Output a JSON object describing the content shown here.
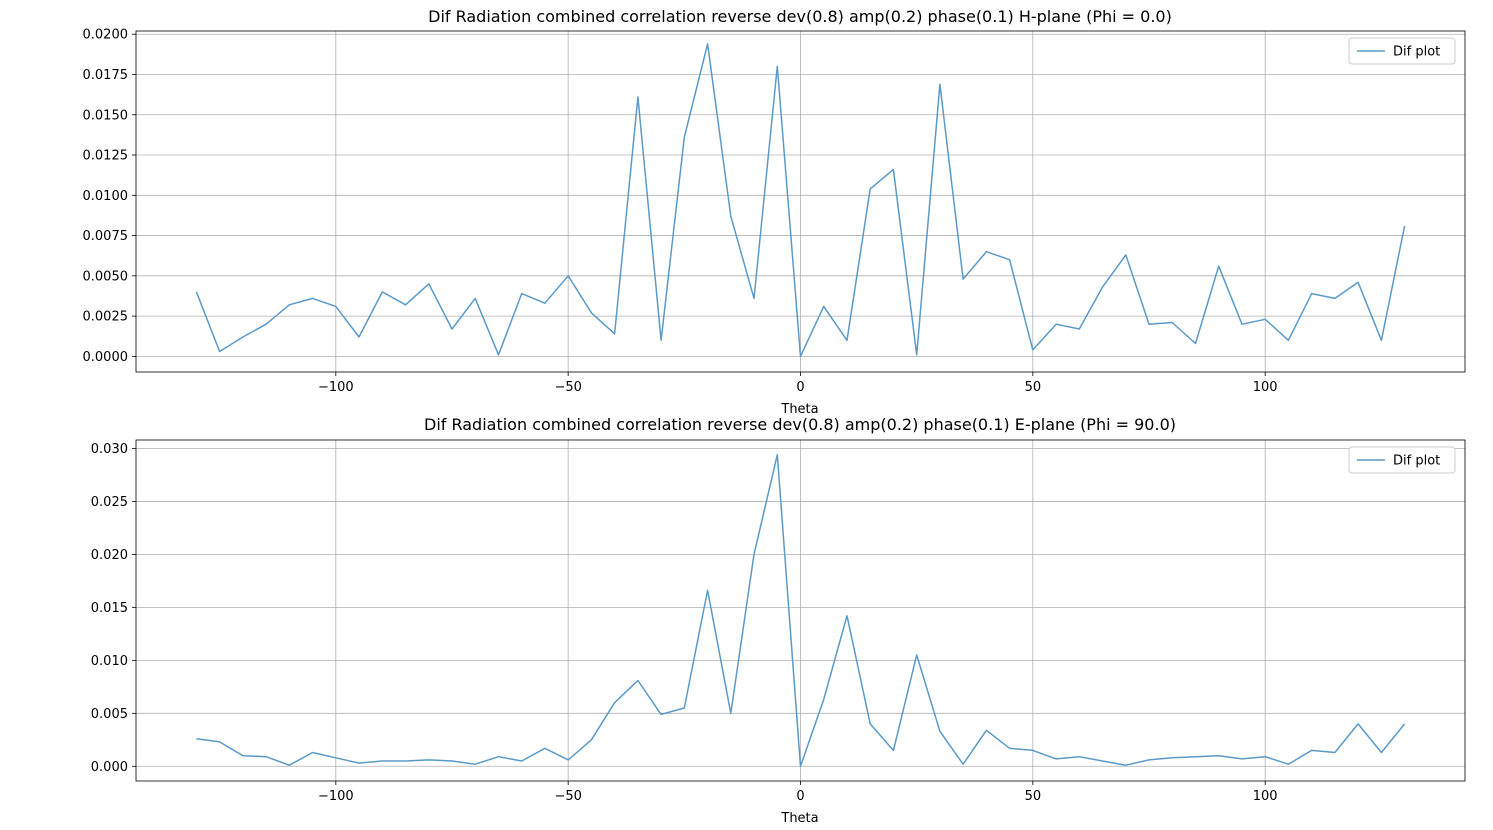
{
  "chart_data": [
    {
      "type": "line",
      "title": "Dif Radiation combined correlation reverse dev(0.8) amp(0.2) phase(0.1) H-plane (Phi = 0.0)",
      "xlabel": "Theta",
      "ylabel": "",
      "xlim": [
        -143,
        143
      ],
      "ylim": [
        -0.00097,
        0.0202
      ],
      "xticks": [
        -100,
        -50,
        0,
        50,
        100
      ],
      "xtick_labels": [
        "−100",
        "−50",
        "0",
        "50",
        "100"
      ],
      "yticks": [
        0.0,
        0.0025,
        0.005,
        0.0075,
        0.01,
        0.0125,
        0.015,
        0.0175,
        0.02
      ],
      "ytick_labels": [
        "0.0000",
        "0.0025",
        "0.0050",
        "0.0075",
        "0.0100",
        "0.0125",
        "0.0150",
        "0.0175",
        "0.0200"
      ],
      "grid": true,
      "legend": "top-right",
      "color": "#5b9ac8",
      "series": [
        {
          "name": "Dif plot",
          "x": [
            -130,
            -125,
            -120,
            -115,
            -110,
            -105,
            -100,
            -95,
            -90,
            -85,
            -80,
            -75,
            -70,
            -65,
            -60,
            -55,
            -50,
            -45,
            -40,
            -35,
            -30,
            -25,
            -20,
            -15,
            -10,
            -5,
            0,
            5,
            10,
            15,
            20,
            25,
            30,
            35,
            40,
            45,
            50,
            55,
            60,
            65,
            70,
            75,
            80,
            85,
            90,
            95,
            100,
            105,
            110,
            115,
            120,
            125,
            130
          ],
          "y": [
            0.004,
            0.0003,
            0.0012,
            0.002,
            0.0032,
            0.0036,
            0.0031,
            0.0012,
            0.004,
            0.0032,
            0.0045,
            0.0017,
            0.0036,
            0.0001,
            0.0039,
            0.0033,
            0.005,
            0.0027,
            0.0014,
            0.0161,
            0.001,
            0.0136,
            0.0194,
            0.0087,
            0.0036,
            0.018,
            0.0,
            0.0031,
            0.001,
            0.0104,
            0.0116,
            0.0001,
            0.0169,
            0.0048,
            0.0065,
            0.006,
            0.0004,
            0.002,
            0.0017,
            0.0043,
            0.0063,
            0.002,
            0.0021,
            0.0008,
            0.0056,
            0.002,
            0.0023,
            0.001,
            0.0039,
            0.0036,
            0.0046,
            0.001,
            0.0081
          ]
        }
      ]
    },
    {
      "type": "line",
      "title": "Dif Radiation combined correlation reverse dev(0.8) amp(0.2) phase(0.1) E-plane (Phi = 90.0)",
      "xlabel": "Theta",
      "ylabel": "",
      "xlim": [
        -143,
        143
      ],
      "ylim": [
        -0.00139,
        0.0308
      ],
      "xticks": [
        -100,
        -50,
        0,
        50,
        100
      ],
      "xtick_labels": [
        "−100",
        "−50",
        "0",
        "50",
        "100"
      ],
      "yticks": [
        0.0,
        0.005,
        0.01,
        0.015,
        0.02,
        0.025,
        0.03
      ],
      "ytick_labels": [
        "0.000",
        "0.005",
        "0.010",
        "0.015",
        "0.020",
        "0.025",
        "0.030"
      ],
      "grid": true,
      "legend": "top-right",
      "color": "#5b9ac8",
      "series": [
        {
          "name": "Dif plot",
          "x": [
            -130,
            -125,
            -120,
            -115,
            -110,
            -105,
            -100,
            -95,
            -90,
            -85,
            -80,
            -75,
            -70,
            -65,
            -60,
            -55,
            -50,
            -45,
            -40,
            -35,
            -30,
            -25,
            -20,
            -15,
            -10,
            -5,
            0,
            5,
            10,
            15,
            20,
            25,
            30,
            35,
            40,
            45,
            50,
            55,
            60,
            65,
            70,
            75,
            80,
            85,
            90,
            95,
            100,
            105,
            110,
            115,
            120,
            125,
            130
          ],
          "y": [
            0.0026,
            0.0023,
            0.001,
            0.0009,
            0.0001,
            0.0013,
            0.0008,
            0.0003,
            0.0005,
            0.0005,
            0.0006,
            0.0005,
            0.0002,
            0.0009,
            0.0005,
            0.0017,
            0.0006,
            0.0025,
            0.006,
            0.0081,
            0.0049,
            0.0055,
            0.0166,
            0.005,
            0.02,
            0.0294,
            0.0,
            0.0063,
            0.0142,
            0.004,
            0.0015,
            0.0105,
            0.0033,
            0.0002,
            0.0034,
            0.0017,
            0.0015,
            0.0007,
            0.0009,
            0.0005,
            0.0001,
            0.0006,
            0.0008,
            0.0009,
            0.001,
            0.0007,
            0.0009,
            0.0002,
            0.0015,
            0.0013,
            0.004,
            0.0013,
            0.004
          ]
        }
      ]
    }
  ]
}
